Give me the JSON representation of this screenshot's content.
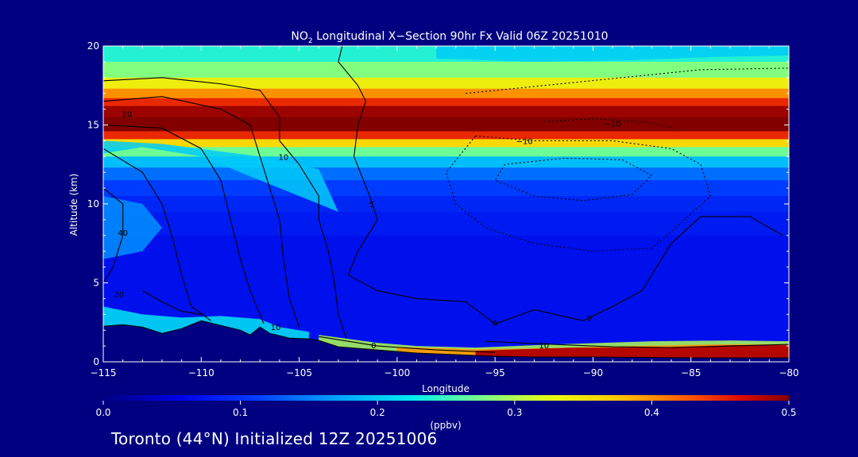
{
  "chart_data": {
    "type": "heatmap",
    "title_main": "NO",
    "title_sub": "2",
    "title_rest": " Longitudinal X−Section 90hr  Fx Valid 06Z 20251010",
    "xlabel": "Longitude",
    "ylabel": "Altitude (km)",
    "xlim": [
      -115,
      -80
    ],
    "ylim": [
      0,
      20
    ],
    "x_ticks": [
      {
        "value": -115,
        "label": "−115"
      },
      {
        "value": -110,
        "label": "−110"
      },
      {
        "value": -105,
        "label": "−105"
      },
      {
        "value": -100,
        "label": "−100"
      },
      {
        "value": -95,
        "label": "−95"
      },
      {
        "value": -90,
        "label": "−90"
      },
      {
        "value": -85,
        "label": "−85"
      },
      {
        "value": -80,
        "label": "−80"
      }
    ],
    "y_ticks": [
      {
        "value": 0,
        "label": "0"
      },
      {
        "value": 5,
        "label": "5"
      },
      {
        "value": 10,
        "label": "10"
      },
      {
        "value": 15,
        "label": "15"
      },
      {
        "value": 20,
        "label": "20"
      }
    ],
    "colorbar": {
      "min": 0.0,
      "max": 0.5,
      "unit": "(ppbv)",
      "ticks": [
        {
          "value": 0.0,
          "label": "0.0"
        },
        {
          "value": 0.1,
          "label": "0.1"
        },
        {
          "value": 0.2,
          "label": "0.2"
        },
        {
          "value": 0.3,
          "label": "0.3"
        },
        {
          "value": 0.4,
          "label": "0.4"
        },
        {
          "value": 0.5,
          "label": "0.5"
        }
      ]
    },
    "bands": [
      {
        "y0": 19.0,
        "y1": 20.0,
        "value": 0.24
      },
      {
        "y0": 18.0,
        "y1": 19.0,
        "value": 0.28
      },
      {
        "y0": 17.3,
        "y1": 18.0,
        "value": 0.34
      },
      {
        "y0": 16.7,
        "y1": 17.3,
        "value": 0.4
      },
      {
        "y0": 16.2,
        "y1": 16.7,
        "value": 0.45
      },
      {
        "y0": 15.5,
        "y1": 16.2,
        "value": 0.49
      },
      {
        "y0": 14.6,
        "y1": 15.5,
        "value": 0.5
      },
      {
        "y0": 14.1,
        "y1": 14.6,
        "value": 0.45
      },
      {
        "y0": 13.6,
        "y1": 14.1,
        "value": 0.36
      },
      {
        "y0": 13.0,
        "y1": 13.6,
        "value": 0.27
      },
      {
        "y0": 12.3,
        "y1": 13.0,
        "value": 0.19
      },
      {
        "y0": 11.5,
        "y1": 12.3,
        "value": 0.14
      },
      {
        "y0": 10.5,
        "y1": 11.5,
        "value": 0.11
      },
      {
        "y0": 9.5,
        "y1": 10.5,
        "value": 0.09
      },
      {
        "y0": 8.0,
        "y1": 9.5,
        "value": 0.08
      },
      {
        "y0": 0.0,
        "y1": 8.0,
        "value": 0.07
      }
    ],
    "surface_plume": {
      "value": 0.48,
      "points": [
        [
          -96,
          0.7
        ],
        [
          -91,
          0.9
        ],
        [
          -87,
          0.9
        ],
        [
          -83,
          1.05
        ],
        [
          -80,
          1.05
        ],
        [
          -80,
          0.0
        ],
        [
          -96,
          0.0
        ]
      ]
    },
    "terrain": {
      "points": [
        [
          -115,
          2.25
        ],
        [
          -114,
          2.35
        ],
        [
          -113,
          2.2
        ],
        [
          -112,
          1.8
        ],
        [
          -111,
          2.1
        ],
        [
          -110,
          2.6
        ],
        [
          -109,
          2.3
        ],
        [
          -108,
          2.0
        ],
        [
          -107.5,
          1.7
        ],
        [
          -107,
          2.2
        ],
        [
          -106.5,
          1.8
        ],
        [
          -105.5,
          1.5
        ],
        [
          -104.5,
          1.45
        ],
        [
          -104,
          1.35
        ],
        [
          -103,
          0.95
        ],
        [
          -101,
          0.75
        ],
        [
          -99,
          0.55
        ],
        [
          -97,
          0.45
        ],
        [
          -95,
          0.35
        ],
        [
          -93,
          0.3
        ],
        [
          -90,
          0.3
        ],
        [
          -85,
          0.25
        ],
        [
          -80,
          0.25
        ]
      ]
    },
    "contour_labels": [
      {
        "x": -113.8,
        "y": 15.5,
        "label": "20"
      },
      {
        "x": -105.8,
        "y": 12.8,
        "label": "10"
      },
      {
        "x": -101.3,
        "y": 9.8,
        "label": "5"
      },
      {
        "x": -114,
        "y": 8.0,
        "label": "40"
      },
      {
        "x": -114.2,
        "y": 4.1,
        "label": "20"
      },
      {
        "x": -106.2,
        "y": 2.0,
        "label": "10"
      },
      {
        "x": -101.2,
        "y": 0.85,
        "label": "0"
      },
      {
        "x": -90.2,
        "y": 2.6,
        "label": "0"
      },
      {
        "x": -89,
        "y": 14.9,
        "label": "−10"
      },
      {
        "x": -93.5,
        "y": 13.8,
        "label": "−10"
      },
      {
        "x": -92.5,
        "y": 0.85,
        "label": "10"
      },
      {
        "x": -95,
        "y": 2.3,
        "label": "Δ"
      }
    ]
  },
  "footer": {
    "text": "Toronto (44°N) Initialized 12Z 20251006"
  }
}
